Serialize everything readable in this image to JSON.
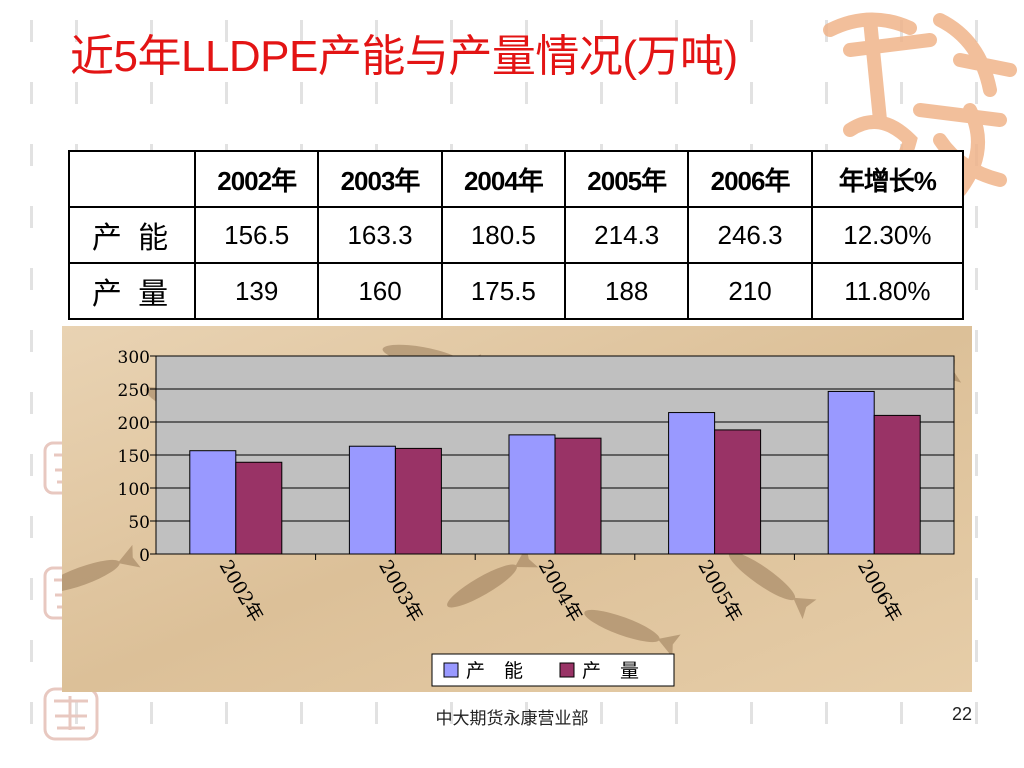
{
  "slide": {
    "title": "近5年LLDPE产能与产量情况(万吨)",
    "footer": "中大期货永康营业部",
    "page_number": "22",
    "title_color": "#e31414"
  },
  "table": {
    "headers": [
      "",
      "2002年",
      "2003年",
      "2004年",
      "2005年",
      "2006年",
      "年增长%"
    ],
    "rows": [
      {
        "label": "产 能",
        "cells": [
          "156.5",
          "163.3",
          "180.5",
          "214.3",
          "246.3",
          "12.30%"
        ]
      },
      {
        "label": "产 量",
        "cells": [
          "139",
          "160",
          "175.5",
          "188",
          "210",
          "11.80%"
        ]
      }
    ]
  },
  "chart_data": {
    "type": "bar",
    "categories": [
      "2002年",
      "2003年",
      "2004年",
      "2005年",
      "2006年"
    ],
    "series": [
      {
        "name": "产　能",
        "values": [
          156.5,
          163.3,
          180.5,
          214.3,
          246.3
        ],
        "color": "#9999ff"
      },
      {
        "name": "产　量",
        "values": [
          139,
          160,
          175.5,
          188,
          210
        ],
        "color": "#993366"
      }
    ],
    "yticks": [
      "0",
      "50",
      "100",
      "150",
      "200",
      "250",
      "300"
    ],
    "ylim": [
      0,
      300
    ],
    "grid": true,
    "legend": "bottom",
    "plot_bg": "#c0c0c0"
  }
}
